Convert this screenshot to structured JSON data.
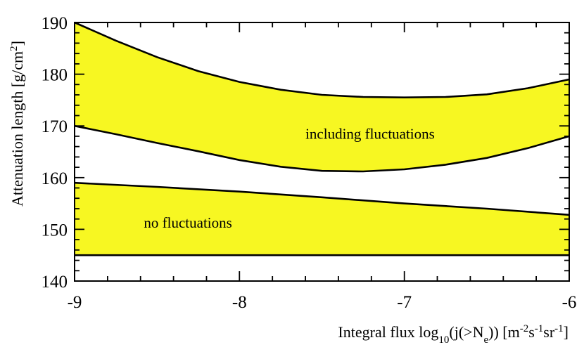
{
  "chart_data": {
    "type": "area",
    "xlim": [
      -9,
      -6
    ],
    "ylim": [
      140,
      190
    ],
    "x_ticks": [
      "-9",
      "-8",
      "-7",
      "-6"
    ],
    "y_ticks": [
      "140",
      "150",
      "160",
      "170",
      "180",
      "190"
    ],
    "xlabel": {
      "text": "Integral flux log",
      "sub1": "10",
      "mid1": "(j(>N",
      "sub2": "e",
      "mid2": ")) [m",
      "sup1": "-2",
      "mid3": "s",
      "sup2": "-1",
      "mid4": "sr",
      "sup3": "-1",
      "end": "]"
    },
    "ylabel": {
      "text": "Attenuation length [g/cm",
      "sup": "2",
      "end": "]"
    },
    "fill_color": "#f7f722",
    "line_color": "#000000",
    "bands": [
      {
        "label": "including fluctuations",
        "label_pos": [
          -7.6,
          167.5
        ],
        "upper": [
          [
            -9.0,
            190.0
          ],
          [
            -8.75,
            186.5
          ],
          [
            -8.5,
            183.3
          ],
          [
            -8.25,
            180.6
          ],
          [
            -8.0,
            178.5
          ],
          [
            -7.75,
            177.0
          ],
          [
            -7.5,
            176.0
          ],
          [
            -7.25,
            175.6
          ],
          [
            -7.0,
            175.5
          ],
          [
            -6.75,
            175.6
          ],
          [
            -6.5,
            176.1
          ],
          [
            -6.25,
            177.3
          ],
          [
            -6.0,
            179.0
          ]
        ],
        "lower": [
          [
            -9.0,
            170.0
          ],
          [
            -8.75,
            168.4
          ],
          [
            -8.5,
            166.7
          ],
          [
            -8.25,
            165.1
          ],
          [
            -8.0,
            163.4
          ],
          [
            -7.75,
            162.1
          ],
          [
            -7.5,
            161.3
          ],
          [
            -7.25,
            161.2
          ],
          [
            -7.0,
            161.6
          ],
          [
            -6.75,
            162.5
          ],
          [
            -6.5,
            163.8
          ],
          [
            -6.25,
            165.7
          ],
          [
            -6.0,
            168.0
          ]
        ]
      },
      {
        "label": "no fluctuations",
        "label_pos": [
          -8.58,
          150.3
        ],
        "upper": [
          [
            -9.0,
            159.0
          ],
          [
            -8.5,
            158.2
          ],
          [
            -8.0,
            157.3
          ],
          [
            -7.5,
            156.2
          ],
          [
            -7.0,
            155.0
          ],
          [
            -6.5,
            154.0
          ],
          [
            -6.0,
            152.8
          ]
        ],
        "lower": [
          [
            -9.0,
            145.0
          ],
          [
            -8.0,
            145.0
          ],
          [
            -7.0,
            145.0
          ],
          [
            -6.0,
            145.0
          ]
        ]
      }
    ]
  }
}
